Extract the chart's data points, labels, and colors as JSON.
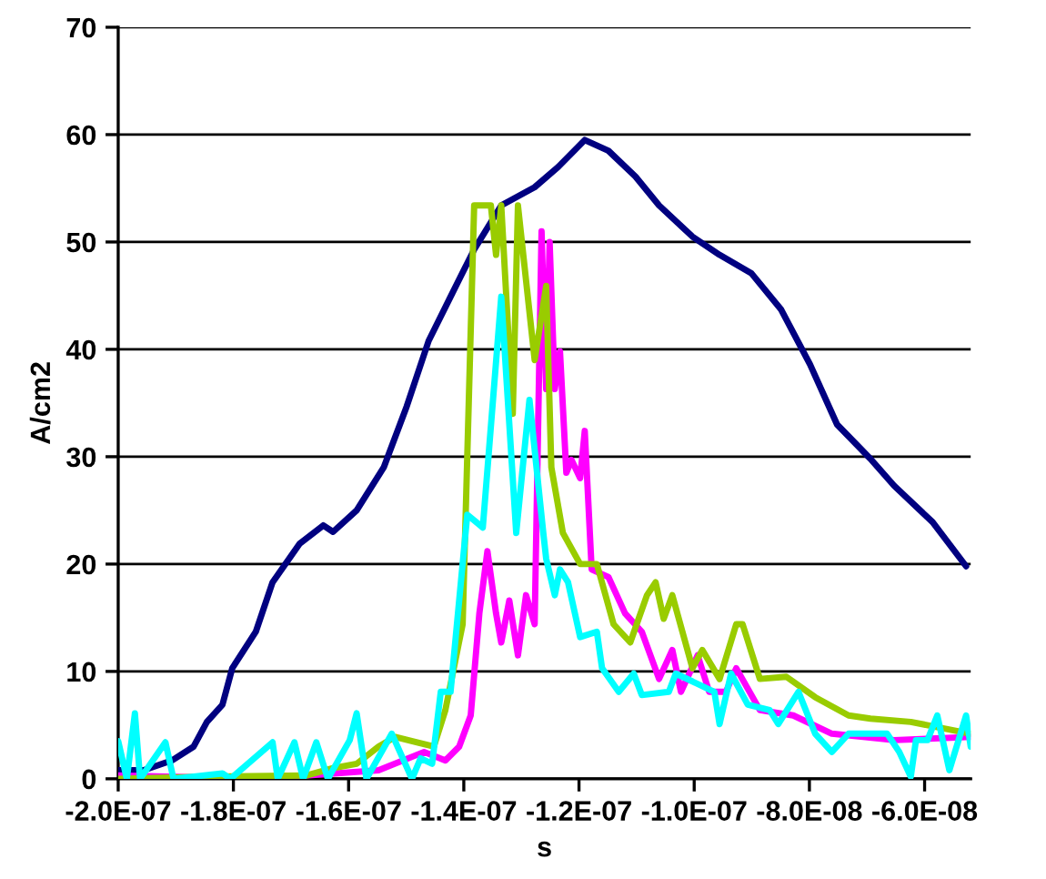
{
  "chart_data": {
    "type": "line",
    "xlabel": "s",
    "ylabel": "A/cm2",
    "xlim": [
      -2e-07,
      -5.2e-08
    ],
    "ylim": [
      0,
      70
    ],
    "xticks": [
      {
        "value": -2e-07,
        "label": "-2.0E-07"
      },
      {
        "value": -1.8e-07,
        "label": "-1.8E-07"
      },
      {
        "value": -1.6e-07,
        "label": "-1.6E-07"
      },
      {
        "value": -1.4e-07,
        "label": "-1.4E-07"
      },
      {
        "value": -1.2e-07,
        "label": "-1.2E-07"
      },
      {
        "value": -1e-07,
        "label": "-1.0E-07"
      },
      {
        "value": -8e-08,
        "label": "-8.0E-08"
      },
      {
        "value": -6e-08,
        "label": "-6.0E-08"
      }
    ],
    "yticks": [
      0,
      10,
      20,
      30,
      40,
      50,
      60,
      70
    ],
    "grid": "y",
    "marker": "none",
    "line_style": "solid",
    "series": [
      {
        "color": "#000080",
        "x": [
          -2e-07,
          -1.956e-07,
          -1.907e-07,
          -1.869e-07,
          -1.846e-07,
          -1.819e-07,
          -1.802e-07,
          -1.761e-07,
          -1.732e-07,
          -1.685e-07,
          -1.644e-07,
          -1.627e-07,
          -1.586e-07,
          -1.539e-07,
          -1.499e-07,
          -1.461e-07,
          -1.423e-07,
          -1.382e-07,
          -1.335e-07,
          -1.277e-07,
          -1.236e-07,
          -1.19e-07,
          -1.149e-07,
          -1.102e-07,
          -1.061e-07,
          -1.003e-07,
          -9.56e-08,
          -9.01e-08,
          -8.49e-08,
          -7.99e-08,
          -7.52e-08,
          -6.94e-08,
          -6.53e-08,
          -5.86e-08,
          -5.28e-08
        ],
        "values": [
          0.8,
          0.8,
          1.7,
          3,
          5.3,
          6.9,
          10.3,
          13.7,
          18.3,
          21.9,
          23.6,
          23,
          25,
          29,
          34.7,
          40.8,
          44.9,
          49.3,
          53.4,
          55.1,
          57,
          59.5,
          58.5,
          56.1,
          53.4,
          50.5,
          48.8,
          47.1,
          43.7,
          38.6,
          33,
          29.8,
          27.3,
          23.9,
          19.8
        ]
      },
      {
        "color": "#ff00ff",
        "x": [
          -2e-07,
          -1.752e-07,
          -1.548e-07,
          -1.469e-07,
          -1.432e-07,
          -1.408e-07,
          -1.388e-07,
          -1.373e-07,
          -1.359e-07,
          -1.344e-07,
          -1.335e-07,
          -1.321e-07,
          -1.306e-07,
          -1.292e-07,
          -1.277e-07,
          -1.265e-07,
          -1.257e-07,
          -1.251e-07,
          -1.242e-07,
          -1.233e-07,
          -1.222e-07,
          -1.213e-07,
          -1.198e-07,
          -1.19e-07,
          -1.178e-07,
          -1.149e-07,
          -1.12e-07,
          -1.091e-07,
          -1.061e-07,
          -1.038e-07,
          -1.023e-07,
          -9.94e-08,
          -9.74e-08,
          -9.45e-08,
          -9.27e-08,
          -8.86e-08,
          -8.28e-08,
          -7.61e-08,
          -6.53e-08,
          -5.2e-08
        ],
        "values": [
          0.3,
          0,
          0.8,
          2.5,
          1.7,
          3,
          5.9,
          15.4,
          21.2,
          15.4,
          12.7,
          16.6,
          11.5,
          17.1,
          14.4,
          51,
          36.3,
          50,
          36.3,
          39.8,
          28.5,
          29.7,
          28,
          32.4,
          19.5,
          18.8,
          15.4,
          13.7,
          9.3,
          12,
          8.1,
          11.5,
          8.1,
          8.1,
          10.3,
          6.4,
          5.9,
          4.2,
          3.6,
          3.9
        ]
      },
      {
        "color": "#99cc00",
        "x": [
          -2e-07,
          -1.84e-07,
          -1.674e-07,
          -1.627e-07,
          -1.586e-07,
          -1.548e-07,
          -1.519e-07,
          -1.481e-07,
          -1.452e-07,
          -1.432e-07,
          -1.402e-07,
          -1.382e-07,
          -1.353e-07,
          -1.344e-07,
          -1.335e-07,
          -1.315e-07,
          -1.306e-07,
          -1.277e-07,
          -1.257e-07,
          -1.248e-07,
          -1.228e-07,
          -1.198e-07,
          -1.169e-07,
          -1.14e-07,
          -1.111e-07,
          -1.082e-07,
          -1.067e-07,
          -1.053e-07,
          -1.038e-07,
          -1.003e-07,
          -9.86e-08,
          -9.56e-08,
          -9.27e-08,
          -9.16e-08,
          -8.86e-08,
          -8.4e-08,
          -7.9e-08,
          -7.32e-08,
          -6.94e-08,
          -6.24e-08,
          -5.2e-08
        ],
        "values": [
          0,
          0.2,
          0.3,
          1,
          1.4,
          3,
          3.9,
          3.4,
          3,
          6.4,
          14.4,
          53.4,
          53.4,
          48.8,
          53.4,
          34,
          53.4,
          39,
          45.9,
          29,
          22.9,
          20,
          20,
          14.4,
          12.7,
          17.1,
          18.3,
          14.9,
          17.1,
          10.3,
          12,
          9.3,
          14.4,
          14.4,
          9.3,
          9.5,
          7.6,
          5.9,
          5.6,
          5.3,
          4.2
        ]
      },
      {
        "color": "#00ffff",
        "x": [
          -2e-07,
          -1.985e-07,
          -1.971e-07,
          -1.962e-07,
          -1.918e-07,
          -1.904e-07,
          -1.819e-07,
          -1.805e-07,
          -1.732e-07,
          -1.723e-07,
          -1.694e-07,
          -1.679e-07,
          -1.656e-07,
          -1.636e-07,
          -1.598e-07,
          -1.586e-07,
          -1.569e-07,
          -1.525e-07,
          -1.49e-07,
          -1.475e-07,
          -1.455e-07,
          -1.44e-07,
          -1.423e-07,
          -1.394e-07,
          -1.367e-07,
          -1.335e-07,
          -1.309e-07,
          -1.286e-07,
          -1.262e-07,
          -1.257e-07,
          -1.242e-07,
          -1.233e-07,
          -1.219e-07,
          -1.198e-07,
          -1.169e-07,
          -1.16e-07,
          -1.131e-07,
          -1.105e-07,
          -1.091e-07,
          -1.044e-07,
          -1.032e-07,
          -9.65e-08,
          -9.56e-08,
          -9.36e-08,
          -9.07e-08,
          -8.69e-08,
          -8.54e-08,
          -8.19e-08,
          -7.9e-08,
          -7.61e-08,
          -7.32e-08,
          -6.65e-08,
          -6.44e-08,
          -6.24e-08,
          -6.15e-08,
          -5.95e-08,
          -5.78e-08,
          -5.57e-08,
          -5.28e-08,
          -5.2e-08
        ],
        "values": [
          3.5,
          0,
          6.1,
          0,
          3.4,
          0,
          0.5,
          0,
          3.4,
          0,
          3.4,
          0,
          3.4,
          0,
          3.6,
          6.1,
          0,
          4.2,
          0,
          1.9,
          1.4,
          8.1,
          8.1,
          24.6,
          23.4,
          44.9,
          22.9,
          35.3,
          22.9,
          20.5,
          17.1,
          19.5,
          18.3,
          13.2,
          13.7,
          10.3,
          8.1,
          9.8,
          7.8,
          8.1,
          9.8,
          8.1,
          5.1,
          9.8,
          6.9,
          6.4,
          5.1,
          8.1,
          4.2,
          2.5,
          4.2,
          4.2,
          2.5,
          0.2,
          3.6,
          3.6,
          5.9,
          0.8,
          5.9,
          3
        ]
      }
    ]
  }
}
